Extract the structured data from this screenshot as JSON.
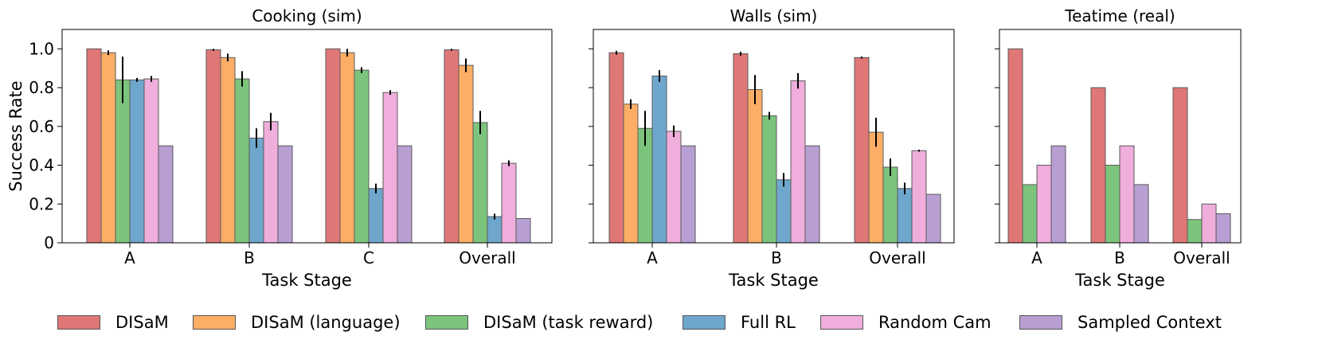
{
  "chart_data": {
    "type": "bar",
    "ylabel": "Success Rate",
    "xlabel": "Task Stage",
    "ylim": [
      0,
      1.1
    ],
    "yticks": [
      0,
      0.2,
      0.4,
      0.6,
      0.8,
      1.0
    ],
    "ytick_labels": [
      "0",
      "0.2",
      "0.4",
      "0.6",
      "0.8",
      "1.0"
    ],
    "legend_position": "bottom",
    "series_names": [
      "DISaM",
      "DISaM (language)",
      "DISaM (task reward)",
      "Full RL",
      "Random Cam",
      "Sampled Context"
    ],
    "series_colors": [
      "#e07777",
      "#fdae66",
      "#7cc47c",
      "#6fa6cc",
      "#efaedb",
      "#b89fd3"
    ],
    "panels": [
      {
        "title": "Cooking (sim)",
        "categories": [
          "A",
          "B",
          "C",
          "Overall"
        ],
        "series": [
          {
            "name": "DISaM",
            "values": [
              1.0,
              0.995,
              1.0,
              0.995
            ],
            "errors": [
              0,
              0.005,
              0,
              0.005
            ]
          },
          {
            "name": "DISaM (language)",
            "values": [
              0.98,
              0.955,
              0.98,
              0.915
            ],
            "errors": [
              0.012,
              0.02,
              0.02,
              0.035
            ]
          },
          {
            "name": "DISaM (task reward)",
            "values": [
              0.84,
              0.845,
              0.89,
              0.62
            ],
            "errors": [
              0.12,
              0.04,
              0.015,
              0.06
            ]
          },
          {
            "name": "Full RL",
            "values": [
              0.84,
              0.54,
              0.28,
              0.135
            ],
            "errors": [
              0.01,
              0.05,
              0.025,
              0.015
            ]
          },
          {
            "name": "Random Cam",
            "values": [
              0.845,
              0.625,
              0.775,
              0.41
            ],
            "errors": [
              0.015,
              0.045,
              0.012,
              0.015
            ]
          },
          {
            "name": "Sampled Context",
            "values": [
              0.5,
              0.5,
              0.5,
              0.125
            ],
            "errors": [
              0,
              0,
              0,
              0
            ]
          }
        ]
      },
      {
        "title": "Walls (sim)",
        "categories": [
          "A",
          "B",
          "Overall"
        ],
        "series": [
          {
            "name": "DISaM",
            "values": [
              0.98,
              0.975,
              0.955
            ],
            "errors": [
              0.01,
              0.01,
              0.005
            ]
          },
          {
            "name": "DISaM (language)",
            "values": [
              0.715,
              0.79,
              0.57
            ],
            "errors": [
              0.025,
              0.075,
              0.075
            ]
          },
          {
            "name": "DISaM (task reward)",
            "values": [
              0.59,
              0.655,
              0.39
            ],
            "errors": [
              0.09,
              0.02,
              0.045
            ]
          },
          {
            "name": "Full RL",
            "values": [
              0.86,
              0.325,
              0.28
            ],
            "errors": [
              0.03,
              0.035,
              0.03
            ]
          },
          {
            "name": "Random Cam",
            "values": [
              0.575,
              0.835,
              0.475
            ],
            "errors": [
              0.03,
              0.04,
              0.005
            ]
          },
          {
            "name": "Sampled Context",
            "values": [
              0.5,
              0.5,
              0.25
            ],
            "errors": [
              0,
              0,
              0
            ]
          }
        ]
      },
      {
        "title": "Teatime (real)",
        "categories": [
          "A",
          "B",
          "Overall"
        ],
        "series": [
          {
            "name": "DISaM",
            "values": [
              1.0,
              0.8,
              0.8
            ],
            "errors": [
              0,
              0,
              0
            ]
          },
          {
            "name": "DISaM (task reward)",
            "values": [
              0.3,
              0.4,
              0.12
            ],
            "errors": [
              0,
              0,
              0
            ]
          },
          {
            "name": "Random Cam",
            "values": [
              0.4,
              0.5,
              0.2
            ],
            "errors": [
              0,
              0,
              0
            ]
          },
          {
            "name": "Sampled Context",
            "values": [
              0.5,
              0.3,
              0.15
            ],
            "errors": [
              0,
              0,
              0
            ]
          }
        ]
      }
    ]
  }
}
